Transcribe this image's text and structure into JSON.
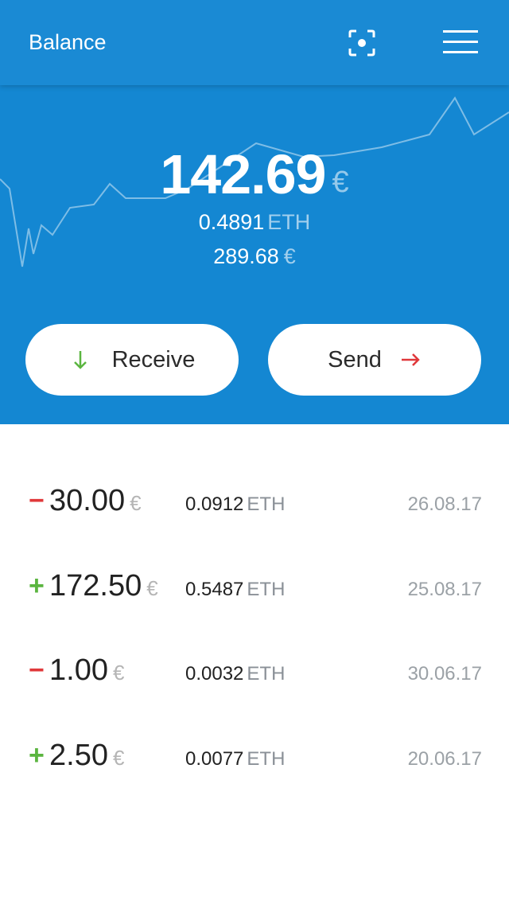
{
  "header": {
    "title": "Balance",
    "scan_icon": "scan-qr-icon",
    "menu_icon": "hamburger-menu-icon"
  },
  "balance": {
    "amount": "142.69",
    "currency": "€",
    "eth_amount": "0.4891",
    "eth_unit": "ETH",
    "secondary_amount": "289.68",
    "secondary_currency": "€"
  },
  "actions": {
    "receive_label": "Receive",
    "receive_icon": "arrow-down-icon",
    "send_label": "Send",
    "send_icon": "arrow-right-icon"
  },
  "transactions": [
    {
      "sign": "−",
      "direction": "out",
      "amount": "30.00",
      "currency": "€",
      "eth": "0.0912",
      "eth_unit": "ETH",
      "date": "26.08.17"
    },
    {
      "sign": "+",
      "direction": "in",
      "amount": "172.50",
      "currency": "€",
      "eth": "0.5487",
      "eth_unit": "ETH",
      "date": "25.08.17"
    },
    {
      "sign": "−",
      "direction": "out",
      "amount": "1.00",
      "currency": "€",
      "eth": "0.0032",
      "eth_unit": "ETH",
      "date": "30.06.17"
    },
    {
      "sign": "+",
      "direction": "in",
      "amount": "2.50",
      "currency": "€",
      "eth": "0.0077",
      "eth_unit": "ETH",
      "date": "20.06.17"
    }
  ],
  "colors": {
    "header_bg": "#1a8ad4",
    "hero_bg": "#1487d2",
    "negative": "#e0383a",
    "positive": "#5bb540"
  }
}
